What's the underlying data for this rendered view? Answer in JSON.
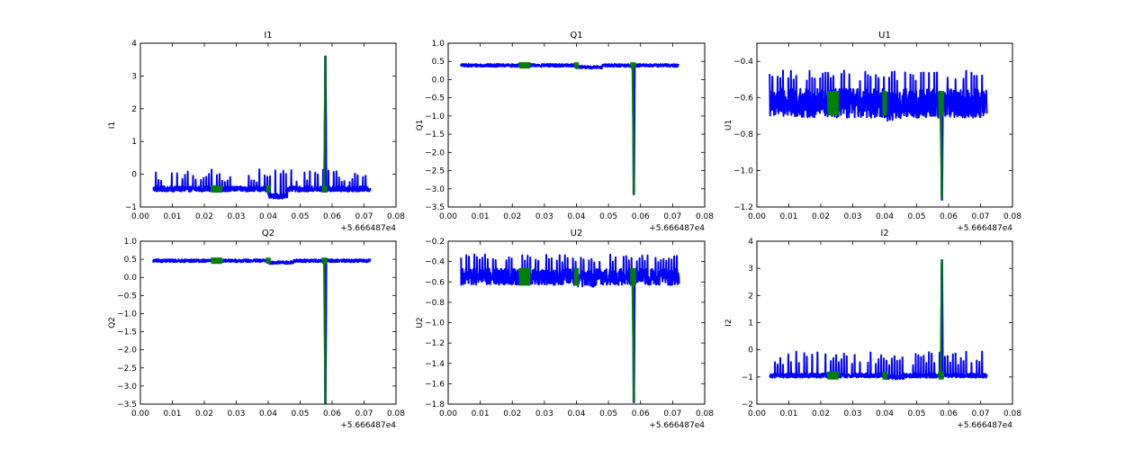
{
  "chart_data": [
    {
      "type": "line",
      "title": "I1",
      "ylabel": "I1",
      "offset_label": "+5.666487e4",
      "xlim": [
        0.0,
        0.08
      ],
      "ylim": [
        -1,
        4
      ],
      "xticks": [
        0.0,
        0.01,
        0.02,
        0.03,
        0.04,
        0.05,
        0.06,
        0.07,
        0.08
      ],
      "xtick_labels": [
        "0.00",
        "0.01",
        "0.02",
        "0.03",
        "0.04",
        "0.05",
        "0.06",
        "0.07",
        "0.08"
      ],
      "yticks": [
        -1,
        0,
        1,
        2,
        3,
        4
      ],
      "ytick_labels": [
        "−1",
        "0",
        "1",
        "2",
        "3",
        "4"
      ],
      "x_range": [
        0.004,
        0.072
      ],
      "baseline": -0.45,
      "band": 0.08,
      "spike_dir": 1,
      "spike_mag": [
        0.2,
        0.6
      ],
      "dip": {
        "x0": 0.04,
        "x1": 0.046,
        "delta": -0.22
      },
      "big_event": {
        "x": 0.058,
        "peak": 3.6
      },
      "green_segments": [
        [
          0.0222,
          0.0255
        ],
        [
          0.0395,
          0.0405
        ],
        [
          0.057,
          0.0583
        ]
      ],
      "green_amp": 0.2,
      "series": [
        {
          "color": "#0000ff"
        },
        {
          "color": "#008000"
        }
      ]
    },
    {
      "type": "line",
      "title": "Q1",
      "ylabel": "Q1",
      "offset_label": "+5.666487e4",
      "xlim": [
        0.0,
        0.08
      ],
      "ylim": [
        -3.5,
        1.0
      ],
      "xticks": [
        0.0,
        0.01,
        0.02,
        0.03,
        0.04,
        0.05,
        0.06,
        0.07,
        0.08
      ],
      "xtick_labels": [
        "0.00",
        "0.01",
        "0.02",
        "0.03",
        "0.04",
        "0.05",
        "0.06",
        "0.07",
        "0.08"
      ],
      "yticks": [
        -3.5,
        -3.0,
        -2.5,
        -2.0,
        -1.5,
        -1.0,
        -0.5,
        0.0,
        0.5,
        1.0
      ],
      "ytick_labels": [
        "−3.5",
        "−3.0",
        "−2.5",
        "−2.0",
        "−1.5",
        "−1.0",
        "−0.5",
        "0.0",
        "0.5",
        "1.0"
      ],
      "x_range": [
        0.004,
        0.072
      ],
      "baseline": 0.39,
      "band": 0.04,
      "spike_dir": 0,
      "spike_mag": [
        0,
        0
      ],
      "dip": {
        "x0": 0.04,
        "x1": 0.048,
        "delta": -0.05
      },
      "big_event": {
        "x": 0.058,
        "peak": -3.15
      },
      "green_segments": [
        [
          0.0222,
          0.0255
        ],
        [
          0.0395,
          0.0405
        ],
        [
          0.057,
          0.0583
        ]
      ],
      "green_amp": 0.15,
      "series": [
        {
          "color": "#0000ff"
        },
        {
          "color": "#008000"
        }
      ]
    },
    {
      "type": "line",
      "title": "U1",
      "ylabel": "U1",
      "offset_label": "+5.666487e4",
      "xlim": [
        0.0,
        0.08
      ],
      "ylim": [
        -1.2,
        -0.3
      ],
      "xticks": [
        0.0,
        0.01,
        0.02,
        0.03,
        0.04,
        0.05,
        0.06,
        0.07,
        0.08
      ],
      "xtick_labels": [
        "0.00",
        "0.01",
        "0.02",
        "0.03",
        "0.04",
        "0.05",
        "0.06",
        "0.07",
        "0.08"
      ],
      "yticks": [
        -1.2,
        -1.0,
        -0.8,
        -0.6,
        -0.4
      ],
      "ytick_labels": [
        "−1.2",
        "−1.0",
        "−0.8",
        "−0.6",
        "−0.4"
      ],
      "x_range": [
        0.004,
        0.072
      ],
      "baseline": -0.63,
      "band": 0.08,
      "spike_dir": 1,
      "spike_mag": [
        0.12,
        0.18
      ],
      "dip": {
        "x0": 0.04,
        "x1": 0.046,
        "delta": -0.02
      },
      "big_event": {
        "x": 0.058,
        "peak": -1.16
      },
      "green_segments": [
        [
          0.0222,
          0.0255
        ],
        [
          0.0395,
          0.0405
        ],
        [
          0.057,
          0.0583
        ]
      ],
      "green_amp": 0.12,
      "series": [
        {
          "color": "#0000ff"
        },
        {
          "color": "#008000"
        }
      ]
    },
    {
      "type": "line",
      "title": "Q2",
      "ylabel": "Q2",
      "offset_label": "+5.666487e4",
      "xlim": [
        0.0,
        0.08
      ],
      "ylim": [
        -3.5,
        1.0
      ],
      "xticks": [
        0.0,
        0.01,
        0.02,
        0.03,
        0.04,
        0.05,
        0.06,
        0.07,
        0.08
      ],
      "xtick_labels": [
        "0.00",
        "0.01",
        "0.02",
        "0.03",
        "0.04",
        "0.05",
        "0.06",
        "0.07",
        "0.08"
      ],
      "yticks": [
        -3.5,
        -3.0,
        -2.5,
        -2.0,
        -1.5,
        -1.0,
        -0.5,
        0.0,
        0.5,
        1.0
      ],
      "ytick_labels": [
        "−3.5",
        "−3.0",
        "−2.5",
        "−2.0",
        "−1.5",
        "−1.0",
        "−0.5",
        "0.0",
        "0.5",
        "1.0"
      ],
      "x_range": [
        0.004,
        0.072
      ],
      "baseline": 0.46,
      "band": 0.04,
      "spike_dir": 0,
      "spike_mag": [
        0,
        0
      ],
      "dip": {
        "x0": 0.04,
        "x1": 0.048,
        "delta": -0.05
      },
      "big_event": {
        "x": 0.058,
        "peak": -3.5
      },
      "green_segments": [
        [
          0.0222,
          0.0255
        ],
        [
          0.0395,
          0.0405
        ],
        [
          0.057,
          0.0583
        ]
      ],
      "green_amp": 0.15,
      "series": [
        {
          "color": "#0000ff"
        },
        {
          "color": "#008000"
        }
      ]
    },
    {
      "type": "line",
      "title": "U2",
      "ylabel": "U2",
      "offset_label": "+5.666487e4",
      "xlim": [
        0.0,
        0.08
      ],
      "ylim": [
        -1.8,
        -0.2
      ],
      "xticks": [
        0.0,
        0.01,
        0.02,
        0.03,
        0.04,
        0.05,
        0.06,
        0.07,
        0.08
      ],
      "xtick_labels": [
        "0.00",
        "0.01",
        "0.02",
        "0.03",
        "0.04",
        "0.05",
        "0.06",
        "0.07",
        "0.08"
      ],
      "yticks": [
        -1.8,
        -1.6,
        -1.4,
        -1.2,
        -1.0,
        -0.8,
        -0.6,
        -0.4,
        -0.2
      ],
      "ytick_labels": [
        "−1.8",
        "−1.6",
        "−1.4",
        "−1.2",
        "−1.0",
        "−0.8",
        "−0.6",
        "−0.4",
        "−0.2"
      ],
      "x_range": [
        0.004,
        0.072
      ],
      "baseline": -0.55,
      "band": 0.08,
      "spike_dir": 1,
      "spike_mag": [
        0.14,
        0.22
      ],
      "dip": {
        "x0": 0.04,
        "x1": 0.046,
        "delta": -0.02
      },
      "big_event": {
        "x": 0.058,
        "peak": -1.78
      },
      "green_segments": [
        [
          0.0222,
          0.0255
        ],
        [
          0.0395,
          0.0405
        ],
        [
          0.057,
          0.0583
        ]
      ],
      "green_amp": 0.15,
      "series": [
        {
          "color": "#0000ff"
        },
        {
          "color": "#008000"
        }
      ]
    },
    {
      "type": "line",
      "title": "I2",
      "ylabel": "I2",
      "offset_label": "+5.666487e4",
      "xlim": [
        0.0,
        0.08
      ],
      "ylim": [
        -2,
        4
      ],
      "xticks": [
        0.0,
        0.01,
        0.02,
        0.03,
        0.04,
        0.05,
        0.06,
        0.07,
        0.08
      ],
      "xtick_labels": [
        "0.00",
        "0.01",
        "0.02",
        "0.03",
        "0.04",
        "0.05",
        "0.06",
        "0.07",
        "0.08"
      ],
      "yticks": [
        -2,
        -1,
        0,
        1,
        2,
        3,
        4
      ],
      "ytick_labels": [
        "−2",
        "−1",
        "0",
        "1",
        "2",
        "3",
        "4"
      ],
      "x_range": [
        0.004,
        0.072
      ],
      "baseline": -0.95,
      "band": 0.08,
      "spike_dir": 1,
      "spike_mag": [
        0.35,
        0.9
      ],
      "dip": {
        "x0": 0.04,
        "x1": 0.046,
        "delta": -0.05
      },
      "big_event": {
        "x": 0.058,
        "peak": 3.3
      },
      "green_segments": [
        [
          0.0222,
          0.0255
        ],
        [
          0.0395,
          0.0405
        ],
        [
          0.057,
          0.0583
        ]
      ],
      "green_amp": 0.25,
      "series": [
        {
          "color": "#0000ff"
        },
        {
          "color": "#008000"
        }
      ]
    }
  ]
}
